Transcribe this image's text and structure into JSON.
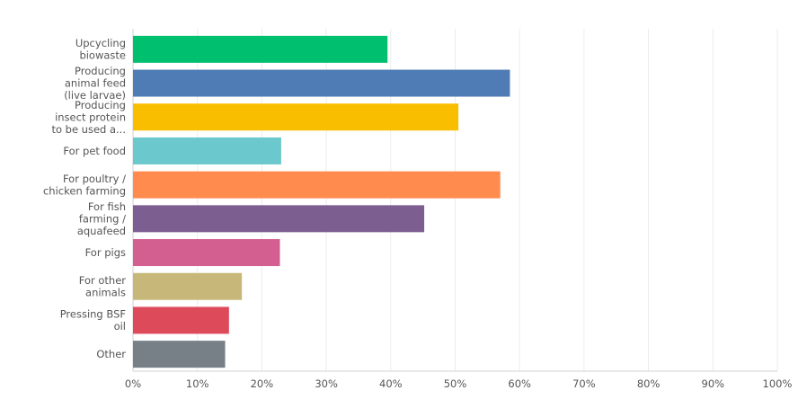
{
  "chart_data": {
    "type": "bar",
    "orientation": "horizontal",
    "categories": [
      [
        "Upcycling",
        "biowaste"
      ],
      [
        "Producing",
        "animal feed",
        "(live larvae)"
      ],
      [
        "Producing",
        "insect protein",
        "to be used a..."
      ],
      [
        "For pet food"
      ],
      [
        "For poultry /",
        "chicken farming"
      ],
      [
        "For fish",
        "farming /",
        "aquafeed"
      ],
      [
        "For pigs"
      ],
      [
        "For other",
        "animals"
      ],
      [
        "Pressing BSF",
        "oil"
      ],
      [
        "Other"
      ]
    ],
    "values": [
      39.5,
      58.5,
      50.5,
      23,
      57,
      45.2,
      22.8,
      16.9,
      14.9,
      14.3
    ],
    "colors": [
      "#00bf6f",
      "#507cb6",
      "#f9be00",
      "#6bc8cd",
      "#ff8b4f",
      "#7d5e90",
      "#d25f90",
      "#c7b879",
      "#dd4a5a",
      "#778087"
    ],
    "xlim": [
      0,
      100
    ],
    "xticks": [
      "0%",
      "10%",
      "20%",
      "30%",
      "40%",
      "50%",
      "60%",
      "70%",
      "80%",
      "90%",
      "100%"
    ],
    "grid": true,
    "title": "",
    "xlabel": "",
    "ylabel": ""
  }
}
